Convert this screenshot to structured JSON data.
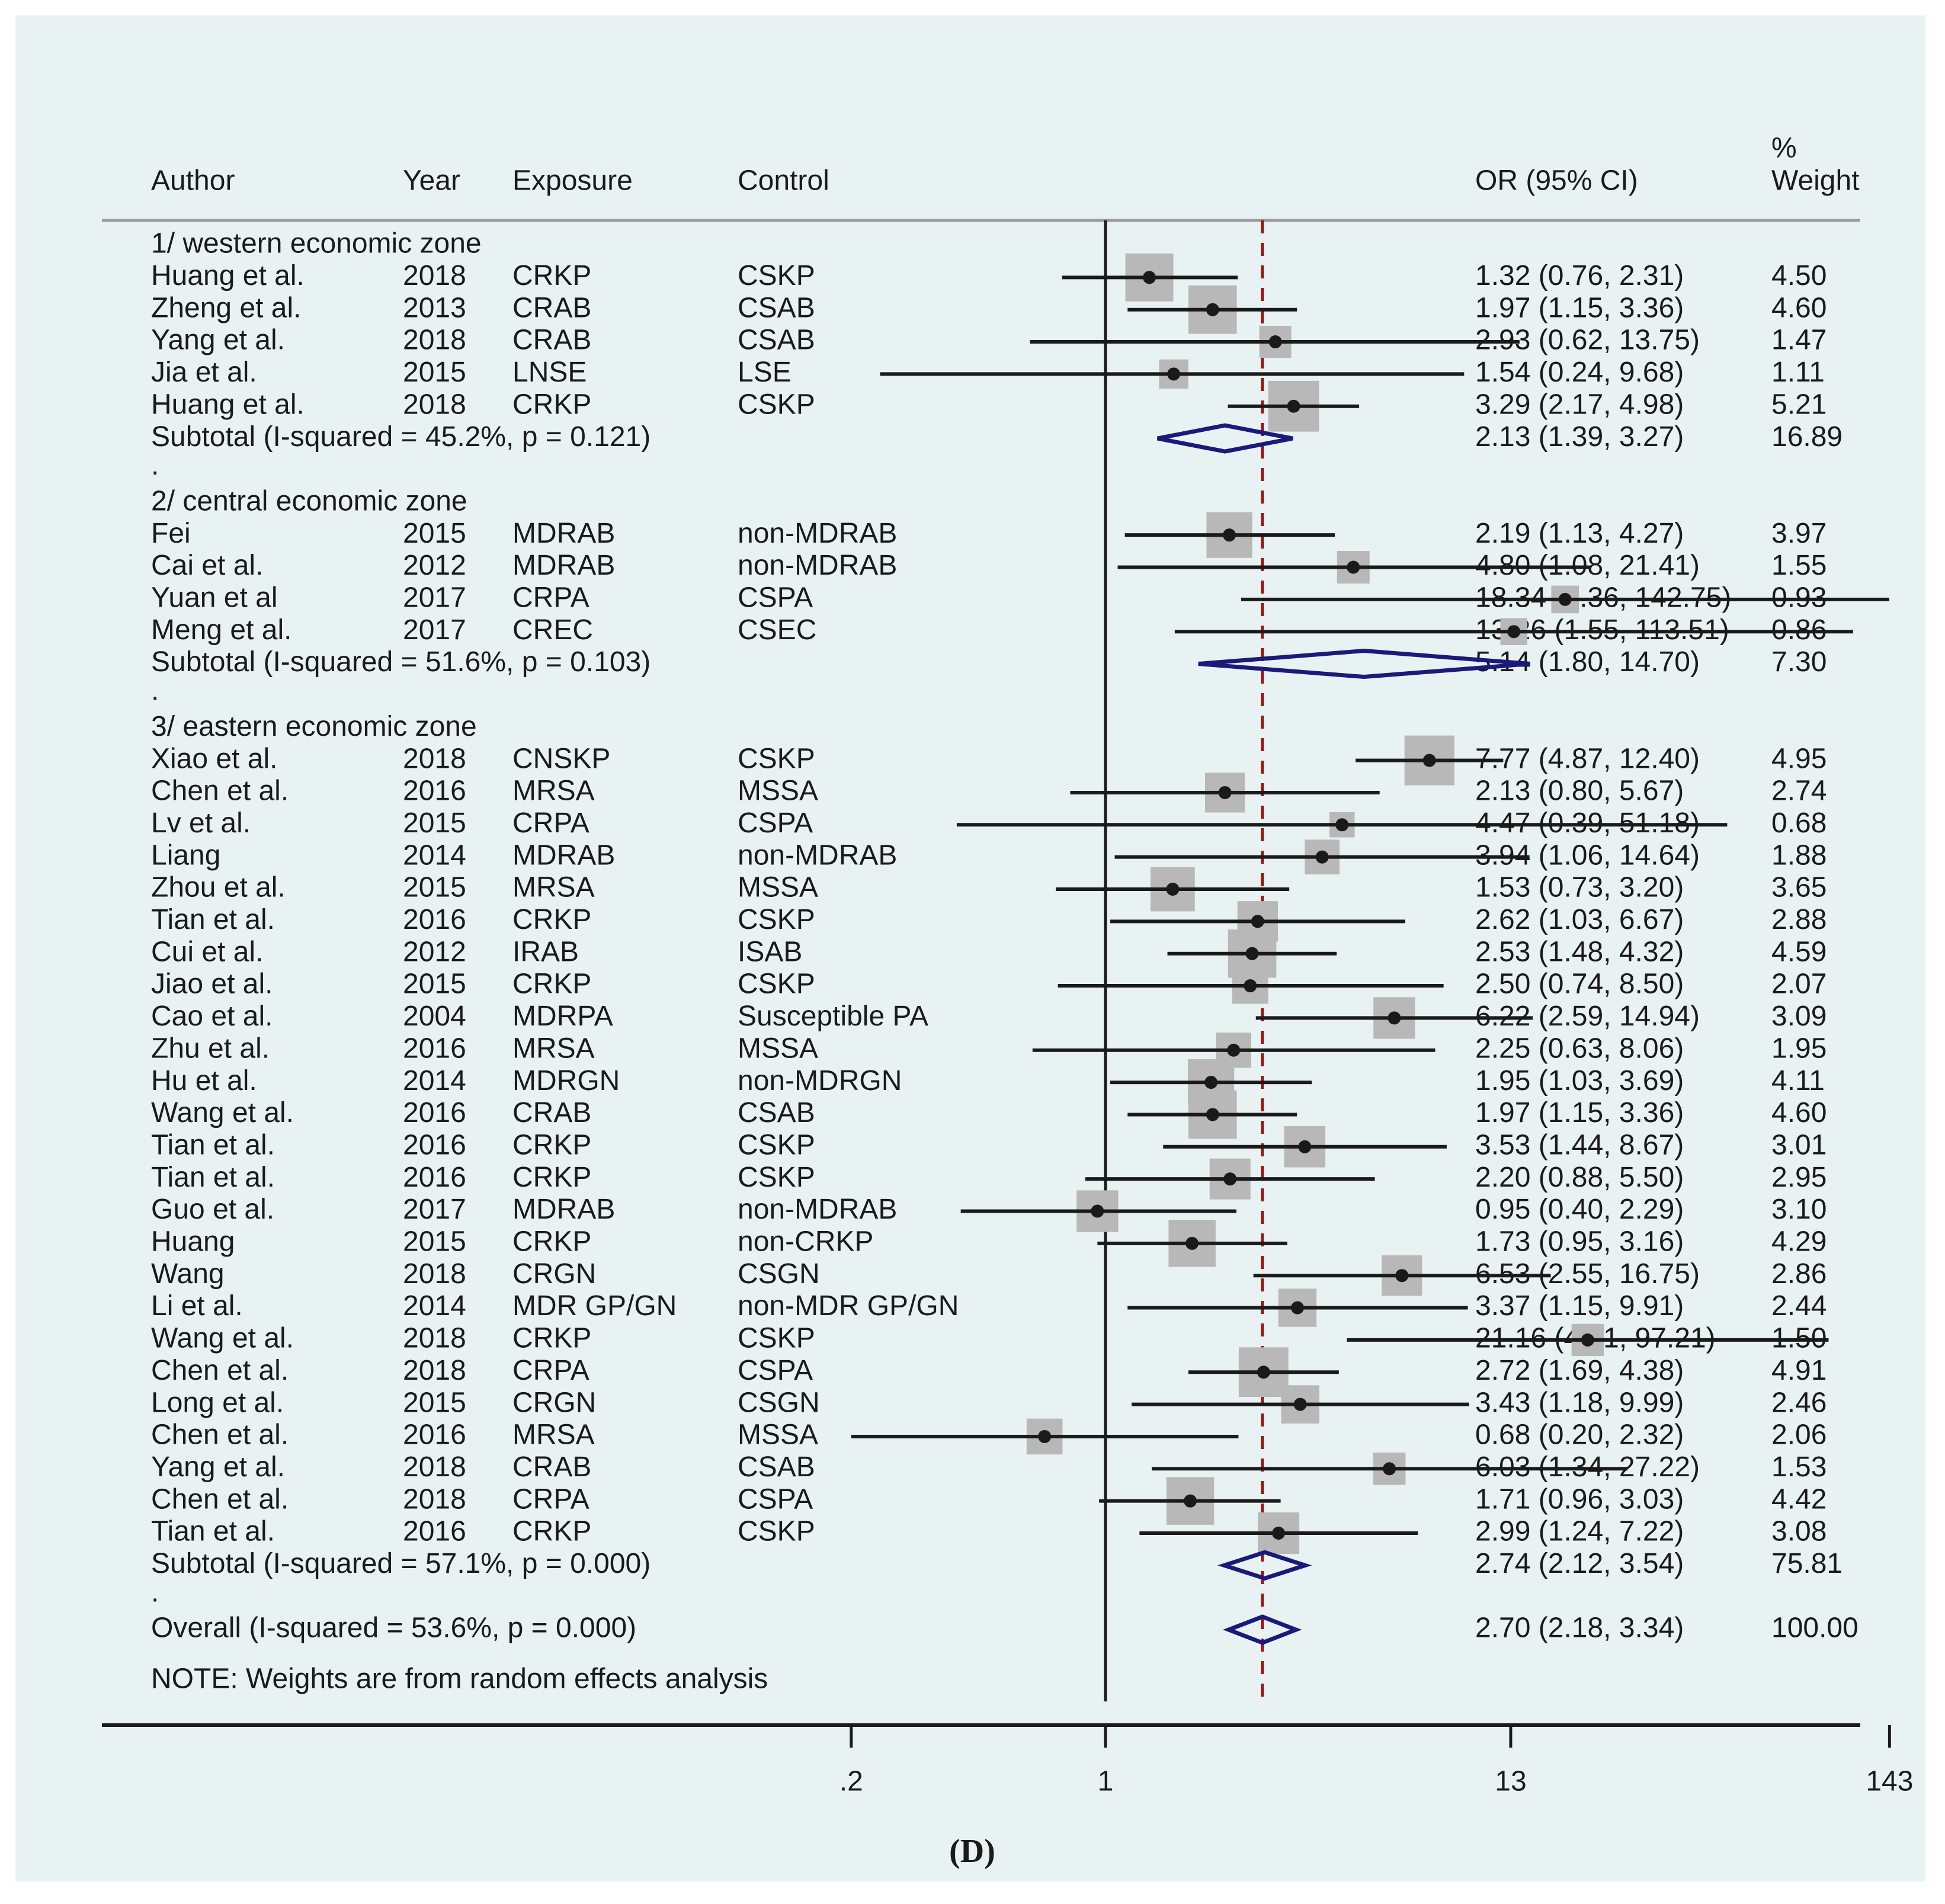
{
  "chart_data": {
    "type": "forest",
    "x_scale": "log",
    "x_ticks": [
      {
        "value": 0.2,
        "label": ".2"
      },
      {
        "value": 1,
        "label": "1"
      },
      {
        "value": 13,
        "label": "13"
      },
      {
        "value": 143,
        "label": "143"
      }
    ],
    "reference_line": 1,
    "overall_line": 2.7,
    "headers": {
      "author": "Author",
      "year": "Year",
      "exposure": "Exposure",
      "control": "Control",
      "or": "OR (95% CI)",
      "weight_top": "%",
      "weight_bottom": "Weight"
    },
    "rows": [
      {
        "kind": "header",
        "label": "1/ western economic zone"
      },
      {
        "kind": "study",
        "author": "Huang et al.",
        "year": "2018",
        "exposure": "CRKP",
        "control": "CSKP",
        "or": 1.32,
        "lo": 0.76,
        "hi": 2.31,
        "ci_text": "1.32 (0.76, 2.31)",
        "weight": "4.50"
      },
      {
        "kind": "study",
        "author": "Zheng et al.",
        "year": "2013",
        "exposure": "CRAB",
        "control": "CSAB",
        "or": 1.97,
        "lo": 1.15,
        "hi": 3.36,
        "ci_text": "1.97 (1.15, 3.36)",
        "weight": "4.60"
      },
      {
        "kind": "study",
        "author": "Yang et al.",
        "year": "2018",
        "exposure": "CRAB",
        "control": "CSAB",
        "or": 2.93,
        "lo": 0.62,
        "hi": 13.75,
        "ci_text": "2.93 (0.62, 13.75)",
        "weight": "1.47"
      },
      {
        "kind": "study",
        "author": "Jia et al.",
        "year": "2015",
        "exposure": "LNSE",
        "control": "LSE",
        "or": 1.54,
        "lo": 0.24,
        "hi": 9.68,
        "ci_text": "1.54 (0.24, 9.68)",
        "weight": "1.11"
      },
      {
        "kind": "study",
        "author": "Huang et al.",
        "year": "2018",
        "exposure": "CRKP",
        "control": "CSKP",
        "or": 3.29,
        "lo": 2.17,
        "hi": 4.98,
        "ci_text": "3.29 (2.17, 4.98)",
        "weight": "5.21"
      },
      {
        "kind": "subtotal",
        "label": "Subtotal  (I-squared = 45.2%, p = 0.121)",
        "or": 2.13,
        "lo": 1.39,
        "hi": 3.27,
        "ci_text": "2.13 (1.39, 3.27)",
        "weight": "16.89"
      },
      {
        "kind": "spacer",
        "label": "."
      },
      {
        "kind": "header",
        "label": "2/ central economic zone"
      },
      {
        "kind": "study",
        "author": "Fei",
        "year": "2015",
        "exposure": "MDRAB",
        "control": "non-MDRAB",
        "or": 2.19,
        "lo": 1.13,
        "hi": 4.27,
        "ci_text": "2.19 (1.13, 4.27)",
        "weight": "3.97"
      },
      {
        "kind": "study",
        "author": "Cai et al.",
        "year": "2012",
        "exposure": "MDRAB",
        "control": "non-MDRAB",
        "or": 4.8,
        "lo": 1.08,
        "hi": 21.41,
        "ci_text": "4.80 (1.08, 21.41)",
        "weight": "1.55"
      },
      {
        "kind": "study",
        "author": "Yuan et al",
        "year": "2017",
        "exposure": "CRPA",
        "control": "CSPA",
        "or": 18.34,
        "lo": 2.36,
        "hi": 142.75,
        "ci_text": "18.34 (2.36, 142.75)",
        "weight": "0.93"
      },
      {
        "kind": "study",
        "author": "Meng et al.",
        "year": "2017",
        "exposure": "CREC",
        "control": "CSEC",
        "or": 13.26,
        "lo": 1.55,
        "hi": 113.51,
        "ci_text": "13.26 (1.55, 113.51)",
        "weight": "0.86"
      },
      {
        "kind": "subtotal",
        "label": "Subtotal  (I-squared = 51.6%, p = 0.103)",
        "or": 5.14,
        "lo": 1.8,
        "hi": 14.7,
        "ci_text": "5.14 (1.80, 14.70)",
        "weight": "7.30"
      },
      {
        "kind": "spacer",
        "label": "."
      },
      {
        "kind": "header",
        "label": "3/ eastern economic zone"
      },
      {
        "kind": "study",
        "author": "Xiao et al.",
        "year": "2018",
        "exposure": "CNSKP",
        "control": "CSKP",
        "or": 7.77,
        "lo": 4.87,
        "hi": 12.4,
        "ci_text": "7.77 (4.87, 12.40)",
        "weight": "4.95"
      },
      {
        "kind": "study",
        "author": "Chen et al.",
        "year": "2016",
        "exposure": "MRSA",
        "control": "MSSA",
        "or": 2.13,
        "lo": 0.8,
        "hi": 5.67,
        "ci_text": "2.13 (0.80, 5.67)",
        "weight": "2.74"
      },
      {
        "kind": "study",
        "author": "Lv et al.",
        "year": "2015",
        "exposure": "CRPA",
        "control": "CSPA",
        "or": 4.47,
        "lo": 0.39,
        "hi": 51.18,
        "ci_text": "4.47 (0.39, 51.18)",
        "weight": "0.68"
      },
      {
        "kind": "study",
        "author": "Liang",
        "year": "2014",
        "exposure": "MDRAB",
        "control": "non-MDRAB",
        "or": 3.94,
        "lo": 1.06,
        "hi": 14.64,
        "ci_text": "3.94 (1.06, 14.64)",
        "weight": "1.88"
      },
      {
        "kind": "study",
        "author": "Zhou et al.",
        "year": "2015",
        "exposure": "MRSA",
        "control": "MSSA",
        "or": 1.53,
        "lo": 0.73,
        "hi": 3.2,
        "ci_text": "1.53 (0.73, 3.20)",
        "weight": "3.65"
      },
      {
        "kind": "study",
        "author": "Tian et al.",
        "year": "2016",
        "exposure": "CRKP",
        "control": "CSKP",
        "or": 2.62,
        "lo": 1.03,
        "hi": 6.67,
        "ci_text": "2.62 (1.03, 6.67)",
        "weight": "2.88"
      },
      {
        "kind": "study",
        "author": "Cui et al.",
        "year": "2012",
        "exposure": "IRAB",
        "control": "ISAB",
        "or": 2.53,
        "lo": 1.48,
        "hi": 4.32,
        "ci_text": "2.53 (1.48, 4.32)",
        "weight": "4.59"
      },
      {
        "kind": "study",
        "author": "Jiao et al.",
        "year": "2015",
        "exposure": "CRKP",
        "control": "CSKP",
        "or": 2.5,
        "lo": 0.74,
        "hi": 8.5,
        "ci_text": "2.50 (0.74, 8.50)",
        "weight": "2.07"
      },
      {
        "kind": "study",
        "author": "Cao et al.",
        "year": "2004",
        "exposure": "MDRPA",
        "control": "Susceptible PA",
        "or": 6.22,
        "lo": 2.59,
        "hi": 14.94,
        "ci_text": "6.22 (2.59, 14.94)",
        "weight": "3.09"
      },
      {
        "kind": "study",
        "author": "Zhu et al.",
        "year": "2016",
        "exposure": "MRSA",
        "control": "MSSA",
        "or": 2.25,
        "lo": 0.63,
        "hi": 8.06,
        "ci_text": "2.25 (0.63, 8.06)",
        "weight": "1.95"
      },
      {
        "kind": "study",
        "author": "Hu et al.",
        "year": "2014",
        "exposure": "MDRGN",
        "control": "non-MDRGN",
        "or": 1.95,
        "lo": 1.03,
        "hi": 3.69,
        "ci_text": "1.95 (1.03, 3.69)",
        "weight": "4.11"
      },
      {
        "kind": "study",
        "author": "Wang et al.",
        "year": "2016",
        "exposure": "CRAB",
        "control": "CSAB",
        "or": 1.97,
        "lo": 1.15,
        "hi": 3.36,
        "ci_text": "1.97 (1.15, 3.36)",
        "weight": "4.60"
      },
      {
        "kind": "study",
        "author": "Tian et al.",
        "year": "2016",
        "exposure": "CRKP",
        "control": "CSKP",
        "or": 3.53,
        "lo": 1.44,
        "hi": 8.67,
        "ci_text": "3.53 (1.44, 8.67)",
        "weight": "3.01"
      },
      {
        "kind": "study",
        "author": "Tian et al.",
        "year": "2016",
        "exposure": "CRKP",
        "control": "CSKP",
        "or": 2.2,
        "lo": 0.88,
        "hi": 5.5,
        "ci_text": "2.20 (0.88, 5.50)",
        "weight": "2.95"
      },
      {
        "kind": "study",
        "author": "Guo et al.",
        "year": "2017",
        "exposure": "MDRAB",
        "control": "non-MDRAB",
        "or": 0.95,
        "lo": 0.4,
        "hi": 2.29,
        "ci_text": "0.95 (0.40, 2.29)",
        "weight": "3.10"
      },
      {
        "kind": "study",
        "author": "Huang",
        "year": "2015",
        "exposure": "CRKP",
        "control": "non-CRKP",
        "or": 1.73,
        "lo": 0.95,
        "hi": 3.16,
        "ci_text": "1.73 (0.95, 3.16)",
        "weight": "4.29"
      },
      {
        "kind": "study",
        "author": "Wang",
        "year": "2018",
        "exposure": "CRGN",
        "control": "CSGN",
        "or": 6.53,
        "lo": 2.55,
        "hi": 16.75,
        "ci_text": "6.53 (2.55, 16.75)",
        "weight": "2.86"
      },
      {
        "kind": "study",
        "author": "Li et al.",
        "year": "2014",
        "exposure": "MDR GP/GN",
        "control": "non-MDR GP/GN",
        "or": 3.37,
        "lo": 1.15,
        "hi": 9.91,
        "ci_text": "3.37 (1.15, 9.91)",
        "weight": "2.44"
      },
      {
        "kind": "study",
        "author": "Wang et al.",
        "year": "2018",
        "exposure": "CRKP",
        "control": "CSKP",
        "or": 21.16,
        "lo": 4.61,
        "hi": 97.21,
        "ci_text": "21.16 (4.61, 97.21)",
        "weight": "1.50"
      },
      {
        "kind": "study",
        "author": "Chen et al.",
        "year": "2018",
        "exposure": "CRPA",
        "control": "CSPA",
        "or": 2.72,
        "lo": 1.69,
        "hi": 4.38,
        "ci_text": "2.72 (1.69, 4.38)",
        "weight": "4.91"
      },
      {
        "kind": "study",
        "author": "Long et al.",
        "year": "2015",
        "exposure": "CRGN",
        "control": "CSGN",
        "or": 3.43,
        "lo": 1.18,
        "hi": 9.99,
        "ci_text": "3.43 (1.18, 9.99)",
        "weight": "2.46"
      },
      {
        "kind": "study",
        "author": "Chen et al.",
        "year": "2016",
        "exposure": "MRSA",
        "control": "MSSA",
        "or": 0.68,
        "lo": 0.2,
        "hi": 2.32,
        "ci_text": "0.68 (0.20, 2.32)",
        "weight": "2.06"
      },
      {
        "kind": "study",
        "author": "Yang et al.",
        "year": "2018",
        "exposure": "CRAB",
        "control": "CSAB",
        "or": 6.03,
        "lo": 1.34,
        "hi": 27.22,
        "ci_text": "6.03 (1.34, 27.22)",
        "weight": "1.53"
      },
      {
        "kind": "study",
        "author": "Chen et al.",
        "year": "2018",
        "exposure": "CRPA",
        "control": "CSPA",
        "or": 1.71,
        "lo": 0.96,
        "hi": 3.03,
        "ci_text": "1.71 (0.96, 3.03)",
        "weight": "4.42"
      },
      {
        "kind": "study",
        "author": "Tian et al.",
        "year": "2016",
        "exposure": "CRKP",
        "control": "CSKP",
        "or": 2.99,
        "lo": 1.24,
        "hi": 7.22,
        "ci_text": "2.99 (1.24, 7.22)",
        "weight": "3.08"
      },
      {
        "kind": "subtotal",
        "label": "Subtotal  (I-squared = 57.1%, p = 0.000)",
        "or": 2.74,
        "lo": 2.12,
        "hi": 3.54,
        "ci_text": "2.74 (2.12, 3.54)",
        "weight": "75.81"
      },
      {
        "kind": "spacer",
        "label": "."
      },
      {
        "kind": "overall",
        "label": "Overall  (I-squared = 53.6%, p = 0.000)",
        "or": 2.7,
        "lo": 2.18,
        "hi": 3.34,
        "ci_text": "2.70 (2.18, 3.34)",
        "weight": "100.00"
      }
    ],
    "note": "NOTE: Weights are from random effects analysis",
    "caption": "(D)",
    "colors": {
      "background": "#e9f2f2",
      "weight_box": "#b8b8b8",
      "diamond": "#1a1a7a",
      "overall_line": "#8b1a1a",
      "ink": "#1a1a1a"
    }
  }
}
